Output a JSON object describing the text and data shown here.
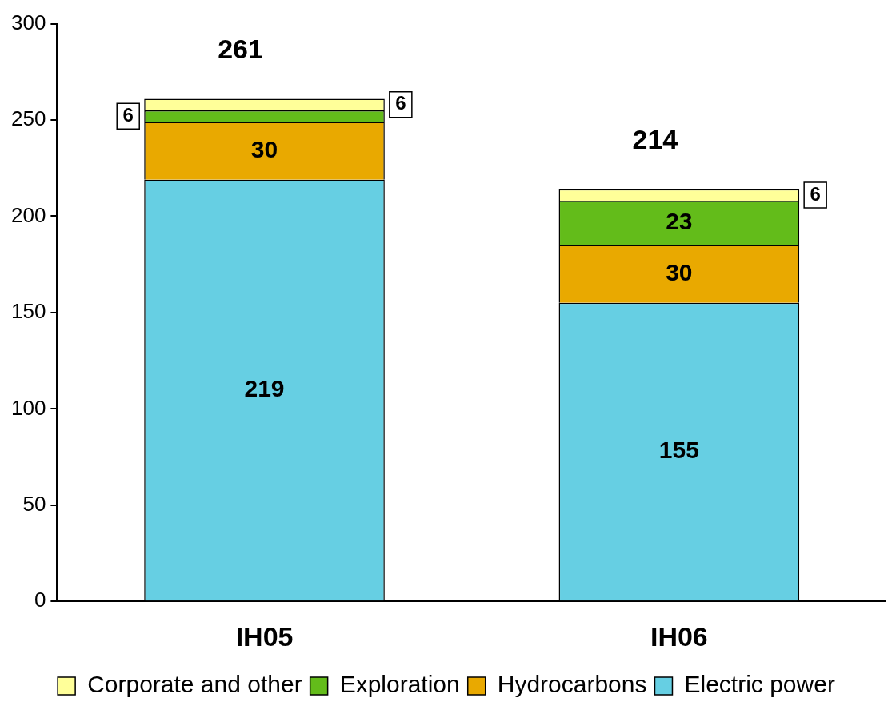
{
  "chart_data": {
    "type": "bar",
    "stacked": true,
    "categories": [
      "IH05",
      "IH06"
    ],
    "series": [
      {
        "name": "Electric power",
        "color": "#66cfe3",
        "values": [
          219,
          155
        ]
      },
      {
        "name": "Hydrocarbons",
        "color": "#e9a900",
        "values": [
          30,
          30
        ]
      },
      {
        "name": "Exploration",
        "color": "#63bc1a",
        "values": [
          6,
          23
        ]
      },
      {
        "name": "Corporate and other",
        "color": "#ffff99",
        "values": [
          6,
          6
        ]
      }
    ],
    "ylim": [
      0,
      300
    ],
    "yticks": [
      0,
      50,
      100,
      150,
      200,
      250,
      300
    ],
    "grid": false,
    "legend": "bottom",
    "data_labels": true,
    "totals": [
      "261",
      "214"
    ]
  }
}
